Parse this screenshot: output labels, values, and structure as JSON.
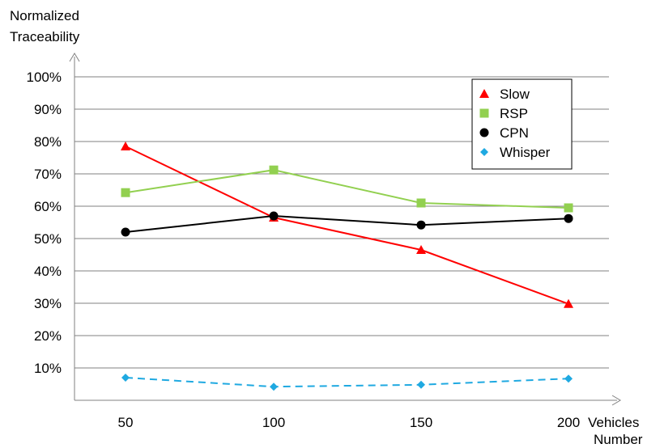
{
  "chart_data": {
    "type": "line",
    "ylabel": [
      "Normalized",
      "Traceability"
    ],
    "xlabel": [
      "Vehicles",
      "Number"
    ],
    "categories": [
      "50",
      "100",
      "150",
      "200"
    ],
    "y_ticks": [
      "10%",
      "20%",
      "30%",
      "40%",
      "50%",
      "60%",
      "70%",
      "80%",
      "90%",
      "100%"
    ],
    "ylim": [
      0,
      100
    ],
    "grid": true,
    "legend_position": "top-right",
    "series": [
      {
        "name": "Slow",
        "values": [
          78.5,
          56.5,
          46.5,
          29.8
        ],
        "color": "#ff0000",
        "marker": "triangle",
        "dash": "solid"
      },
      {
        "name": "RSP",
        "values": [
          64.2,
          71.2,
          61.0,
          59.5
        ],
        "color": "#92d050",
        "marker": "square",
        "dash": "solid"
      },
      {
        "name": "CPN",
        "values": [
          52.0,
          57.0,
          54.2,
          56.2
        ],
        "color": "#000000",
        "marker": "circle",
        "dash": "solid"
      },
      {
        "name": "Whisper",
        "values": [
          7.0,
          4.2,
          4.8,
          6.7
        ],
        "color": "#1fa9e1",
        "marker": "diamond",
        "dash": "dashed"
      }
    ]
  }
}
